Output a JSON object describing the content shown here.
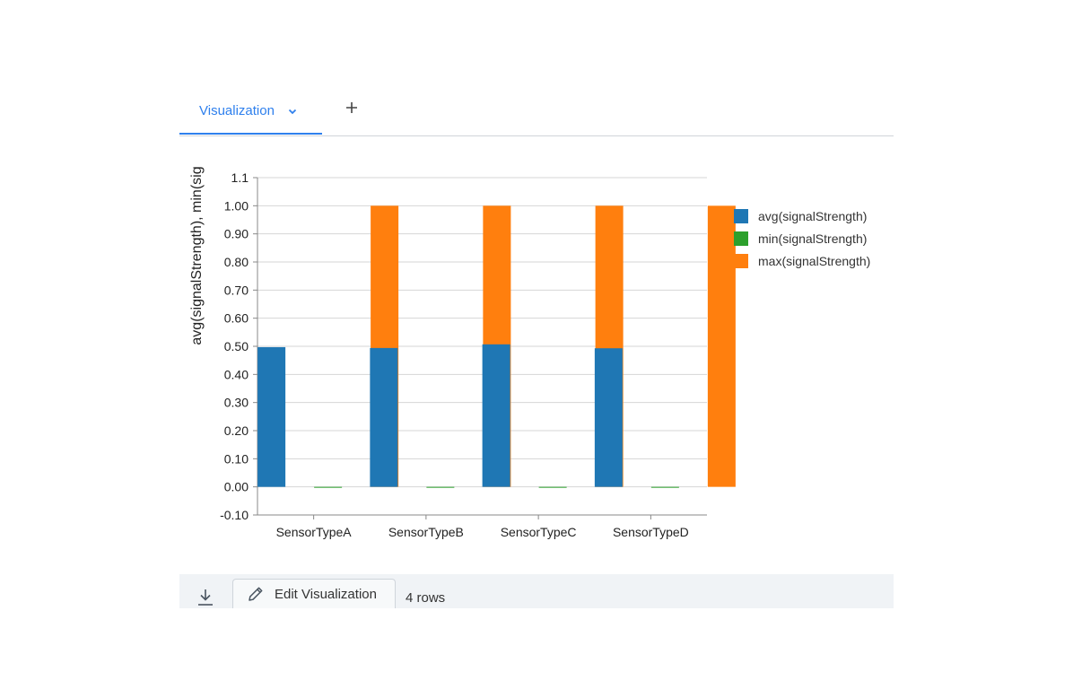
{
  "tabs": [
    {
      "label": "Visualization",
      "active": true
    }
  ],
  "add_tab_label": "+",
  "footer": {
    "edit_label": "Edit Visualization",
    "rows_label": "4 rows"
  },
  "colors": {
    "accent": "#2f80ed",
    "avg": "#1f77b4",
    "min": "#2ca02c",
    "max": "#ff7f0e"
  },
  "chart_data": {
    "type": "bar",
    "title": "",
    "xlabel": "",
    "ylabel": "avg(signalStrength), min(sig",
    "categories": [
      "SensorTypeA",
      "SensorTypeB",
      "SensorTypeC",
      "SensorTypeD"
    ],
    "series": [
      {
        "name": "avg(signalStrength)",
        "color": "#1f77b4",
        "values": [
          0.497,
          0.494,
          0.507,
          0.493
        ]
      },
      {
        "name": "min(signalStrength)",
        "color": "#2ca02c",
        "values": [
          0.0,
          0.0,
          0.0,
          0.0
        ]
      },
      {
        "name": "max(signalStrength)",
        "color": "#ff7f0e",
        "values": [
          1.0,
          1.0,
          1.0,
          1.0
        ]
      }
    ],
    "ylim": [
      -0.1,
      1.1
    ],
    "yticks": [
      -0.1,
      0.0,
      0.1,
      0.2,
      0.3,
      0.4,
      0.5,
      0.6,
      0.7,
      0.8,
      0.9,
      1.0,
      1.1
    ],
    "ytick_labels": [
      "-0.10",
      "0.00",
      "0.10",
      "0.20",
      "0.30",
      "0.40",
      "0.50",
      "0.60",
      "0.70",
      "0.80",
      "0.90",
      "1.00",
      "1.1"
    ],
    "grid": true,
    "legend_position": "right"
  }
}
